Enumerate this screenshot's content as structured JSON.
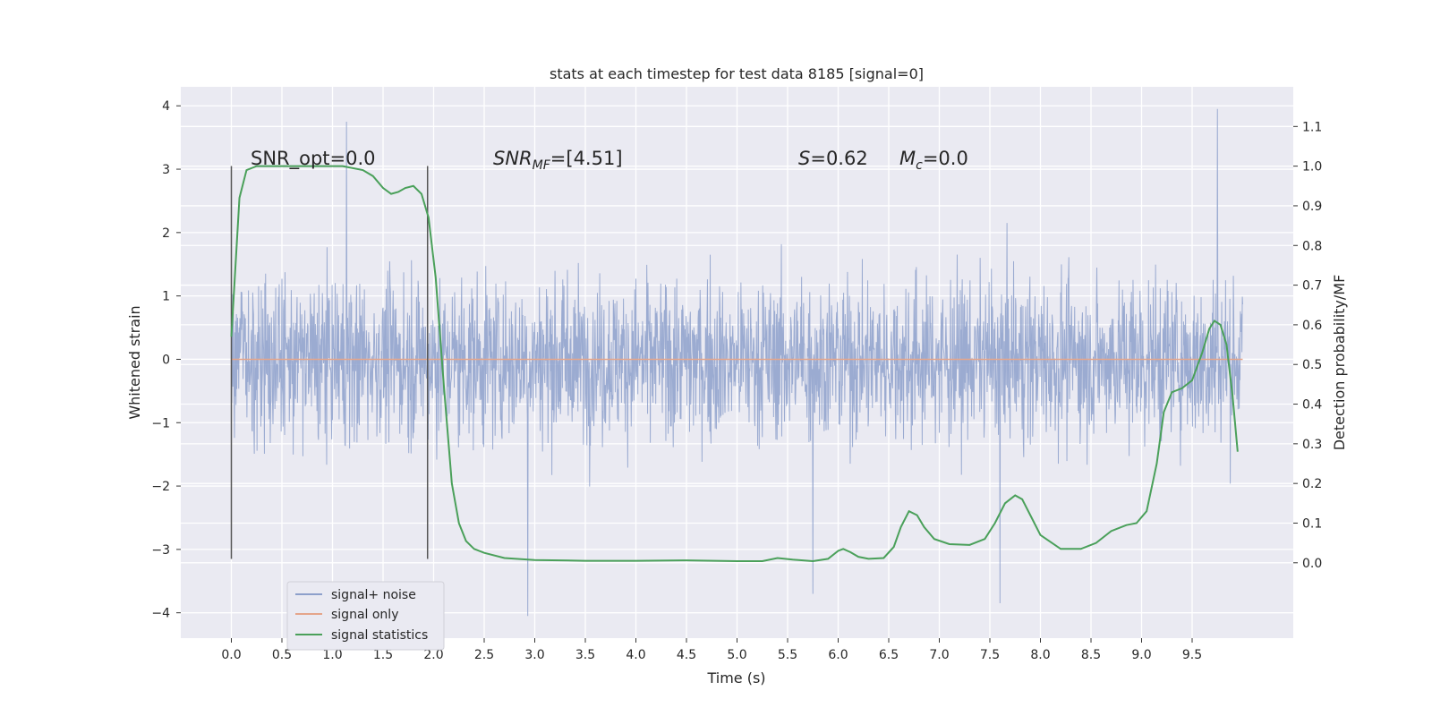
{
  "chart_data": {
    "type": "line",
    "title": "stats at each timestep for test data 8185 [signal=0]",
    "xlabel": "Time (s)",
    "ylabel": "Whitened strain",
    "y2label": "Detection probability/MF",
    "xlim": [
      -0.5,
      10.5
    ],
    "ylim": [
      -4.4,
      4.3
    ],
    "y2lim": [
      -0.19,
      1.2
    ],
    "x_ticks": [
      "0.0",
      "0.5",
      "1.0",
      "1.5",
      "2.0",
      "2.5",
      "3.0",
      "3.5",
      "4.0",
      "4.5",
      "5.0",
      "5.5",
      "6.0",
      "6.5",
      "7.0",
      "7.5",
      "8.0",
      "8.5",
      "9.0",
      "9.5"
    ],
    "y_ticks": [
      "4",
      "3",
      "2",
      "1",
      "0",
      "−1",
      "−2",
      "−3",
      "−4"
    ],
    "y2_ticks": [
      "1.1",
      "1.0",
      "0.9",
      "0.8",
      "0.7",
      "0.6",
      "0.5",
      "0.4",
      "0.3",
      "0.2",
      "0.1",
      "0.0"
    ],
    "grid": true,
    "legend_position": "lower-left",
    "annotations": {
      "snr_opt": "SNR_opt=0.0",
      "snr_mf_sym": "SNR",
      "snr_mf_sub": "MF",
      "snr_mf_val": "=[4.51]",
      "s_sym": "S",
      "s_val": "=0.62",
      "mc_sym": "M",
      "mc_sub": "c",
      "mc_val": "=0.0"
    },
    "markers": [
      {
        "x": 0.0,
        "ymin": -3.15,
        "ymax": 3.05
      },
      {
        "x": 1.94,
        "ymin": -3.15,
        "ymax": 3.05
      }
    ],
    "series": [
      {
        "name": "signal+ noise",
        "color": "#8da0cb",
        "kind": "noise",
        "x_range": [
          0.0,
          10.0
        ],
        "typical_envelope": [
          -2.3,
          2.4
        ],
        "peak_points": [
          {
            "x": 1.14,
            "y": 3.75
          },
          {
            "x": 9.75,
            "y": 3.95
          },
          {
            "x": 2.93,
            "y": -4.05
          },
          {
            "x": 7.6,
            "y": -3.85
          },
          {
            "x": 5.75,
            "y": -3.7
          }
        ]
      },
      {
        "name": "signal only",
        "color": "#e5a58a",
        "kind": "line",
        "x": [
          0.0,
          10.0
        ],
        "y": [
          0.0,
          0.0
        ]
      },
      {
        "name": "signal statistics",
        "color": "#4aa05a",
        "kind": "line",
        "axis": "right",
        "x": [
          0.0,
          0.08,
          0.15,
          0.25,
          0.5,
          0.8,
          1.1,
          1.3,
          1.4,
          1.5,
          1.58,
          1.65,
          1.72,
          1.8,
          1.88,
          1.95,
          2.02,
          2.1,
          2.18,
          2.25,
          2.32,
          2.4,
          2.5,
          2.7,
          3.0,
          3.5,
          4.0,
          4.5,
          5.0,
          5.25,
          5.4,
          5.55,
          5.75,
          5.9,
          6.0,
          6.05,
          6.12,
          6.2,
          6.3,
          6.45,
          6.55,
          6.62,
          6.7,
          6.78,
          6.85,
          6.95,
          7.1,
          7.3,
          7.45,
          7.55,
          7.65,
          7.75,
          7.82,
          7.9,
          8.0,
          8.2,
          8.4,
          8.55,
          8.7,
          8.85,
          8.95,
          9.05,
          9.15,
          9.22,
          9.3,
          9.4,
          9.5,
          9.6,
          9.67,
          9.72,
          9.78,
          9.84,
          9.9,
          9.95
        ],
        "y": [
          0.57,
          0.92,
          0.99,
          1.0,
          1.0,
          1.0,
          1.0,
          0.99,
          0.975,
          0.945,
          0.93,
          0.935,
          0.945,
          0.95,
          0.93,
          0.87,
          0.72,
          0.45,
          0.2,
          0.1,
          0.055,
          0.035,
          0.025,
          0.012,
          0.007,
          0.005,
          0.005,
          0.006,
          0.004,
          0.004,
          0.012,
          0.008,
          0.004,
          0.01,
          0.03,
          0.035,
          0.027,
          0.015,
          0.01,
          0.012,
          0.04,
          0.09,
          0.13,
          0.12,
          0.09,
          0.06,
          0.047,
          0.045,
          0.06,
          0.1,
          0.15,
          0.17,
          0.16,
          0.12,
          0.07,
          0.035,
          0.035,
          0.05,
          0.08,
          0.095,
          0.1,
          0.13,
          0.25,
          0.38,
          0.43,
          0.44,
          0.46,
          0.53,
          0.59,
          0.61,
          0.6,
          0.55,
          0.42,
          0.28
        ]
      }
    ]
  }
}
